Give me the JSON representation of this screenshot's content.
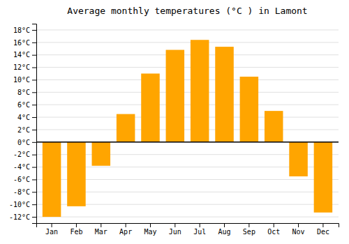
{
  "chart_data": {
    "type": "bar",
    "title": "Average monthly temperatures (°C ) in Lamont",
    "categories": [
      "Jan",
      "Feb",
      "Mar",
      "Apr",
      "May",
      "Jun",
      "Jul",
      "Aug",
      "Sep",
      "Oct",
      "Nov",
      "Dec"
    ],
    "values": [
      -12.0,
      -10.3,
      -3.8,
      4.5,
      11.0,
      14.8,
      16.4,
      15.3,
      10.5,
      5.0,
      -5.5,
      -11.3
    ],
    "color": "#FFA500",
    "ylim": [
      -13,
      19
    ],
    "yticks": [
      {
        "value": -12,
        "label": "-12°C"
      },
      {
        "value": -10,
        "label": "-10°C"
      },
      {
        "value": -8,
        "label": "-8°C"
      },
      {
        "value": -6,
        "label": "-6°C"
      },
      {
        "value": -4,
        "label": "-4°C"
      },
      {
        "value": -2,
        "label": "-2°C"
      },
      {
        "value": 0,
        "label": "0°C"
      },
      {
        "value": 2,
        "label": "2°C"
      },
      {
        "value": 4,
        "label": "4°C"
      },
      {
        "value": 6,
        "label": "6°C"
      },
      {
        "value": 8,
        "label": "8°C"
      },
      {
        "value": 10,
        "label": "10°C"
      },
      {
        "value": 12,
        "label": "12°C"
      },
      {
        "value": 14,
        "label": "14°C"
      },
      {
        "value": 16,
        "label": "16°C"
      },
      {
        "value": 18,
        "label": "18°C"
      }
    ],
    "grid": true
  }
}
